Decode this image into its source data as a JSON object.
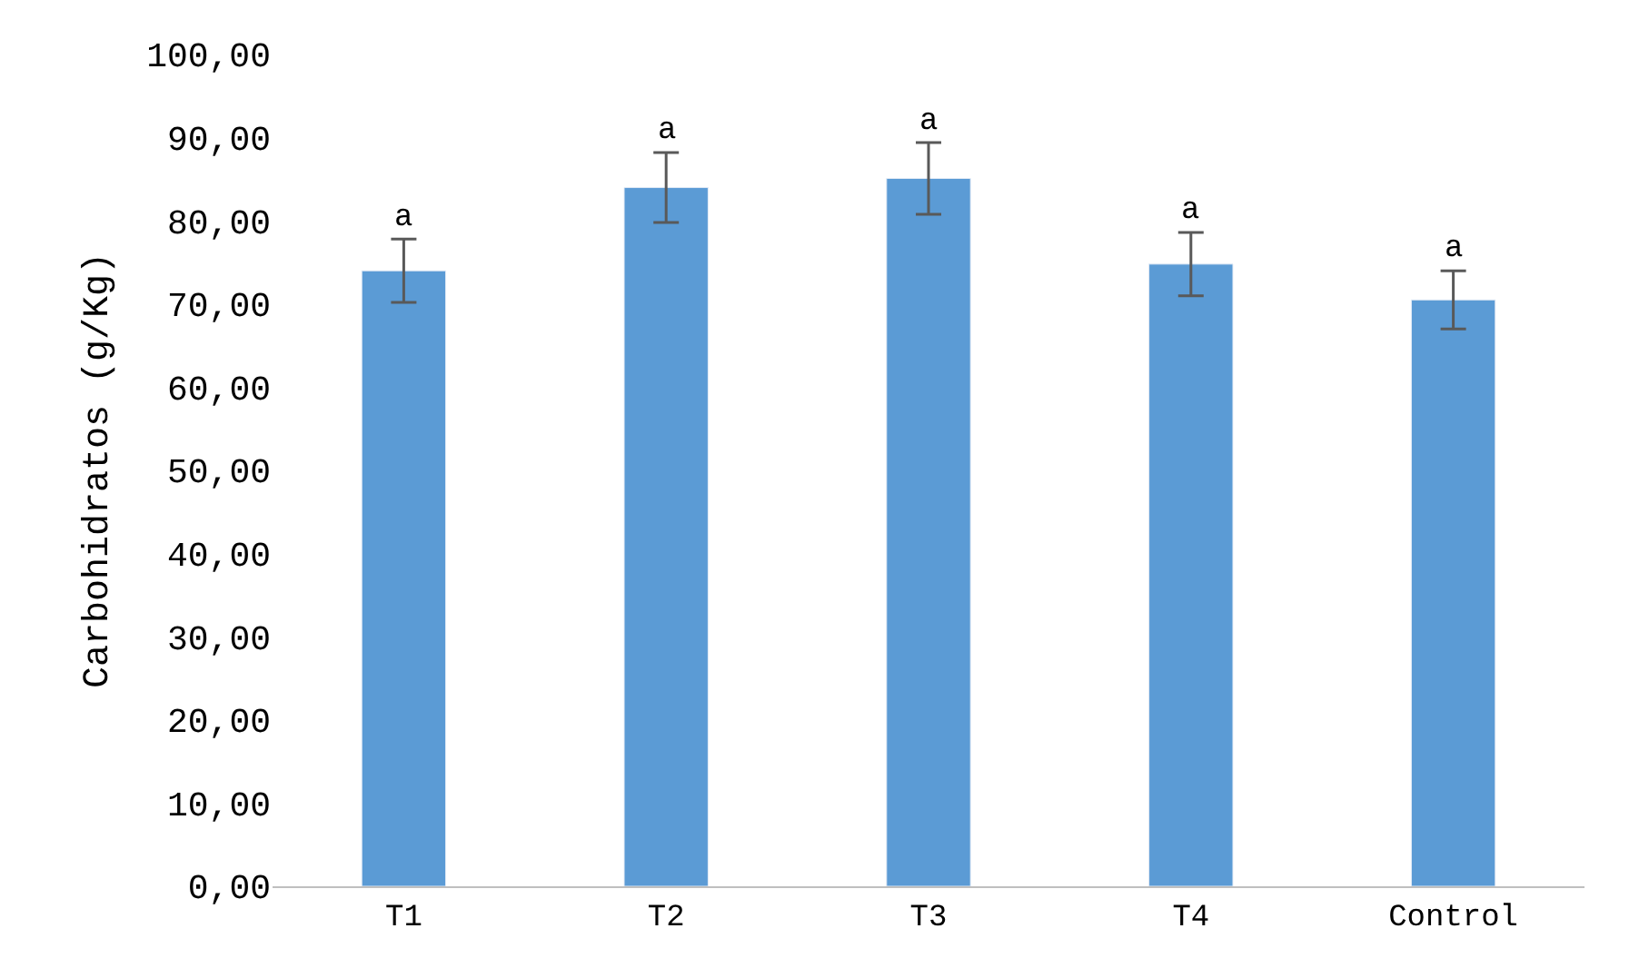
{
  "chart_data": {
    "type": "bar",
    "ylabel": "Carbohidratos (g/Kg)",
    "categories": [
      "T1",
      "T2",
      "T3",
      "T4",
      "Control"
    ],
    "values": [
      74.0,
      84.0,
      85.1,
      74.8,
      70.5
    ],
    "errors": [
      3.8,
      4.2,
      4.3,
      3.8,
      3.5
    ],
    "color": "#5b9bd5",
    "ylim": [
      0,
      100
    ],
    "yticks": [
      {
        "value": 0,
        "label": "0,00"
      },
      {
        "value": 10,
        "label": "10,00"
      },
      {
        "value": 20,
        "label": "20,00"
      },
      {
        "value": 30,
        "label": "30,00"
      },
      {
        "value": 40,
        "label": "40,00"
      },
      {
        "value": 50,
        "label": "50,00"
      },
      {
        "value": 60,
        "label": "60,00"
      },
      {
        "value": 70,
        "label": "70,00"
      },
      {
        "value": 80,
        "label": "80,00"
      },
      {
        "value": 90,
        "label": "90,00"
      },
      {
        "value": 100,
        "label": "100,00"
      }
    ],
    "annotations": [
      {
        "text": "a",
        "x": "T1",
        "y": 77.8
      },
      {
        "text": "a",
        "x": "T2",
        "y": 88.2
      },
      {
        "text": "a",
        "x": "T3",
        "y": 89.4
      },
      {
        "text": "a",
        "x": "T4",
        "y": 78.6
      },
      {
        "text": "a",
        "x": "Control",
        "y": 74.0
      }
    ],
    "legend": false
  }
}
